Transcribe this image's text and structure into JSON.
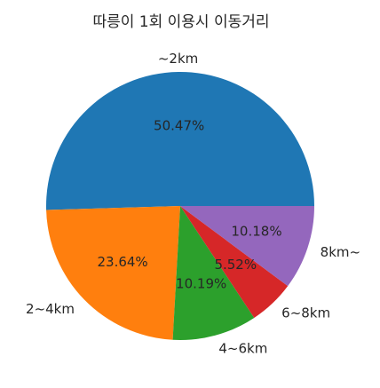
{
  "chart_data": {
    "type": "pie",
    "title": "따릉이 1회 이용시 이동거리",
    "labels": [
      "~2km",
      "2~4km",
      "4~6km",
      "6~8km",
      "8km~"
    ],
    "values": [
      50.47,
      23.64,
      10.19,
      5.52,
      10.18
    ],
    "value_labels": [
      "50.47%",
      "23.64%",
      "10.19%",
      "5.52%",
      "10.18%"
    ],
    "colors": [
      "#1f77b4",
      "#ff7f0e",
      "#2ca02c",
      "#d62728",
      "#9467bd"
    ],
    "start_angle": 0,
    "direction": "counterclockwise",
    "legend": "none"
  }
}
